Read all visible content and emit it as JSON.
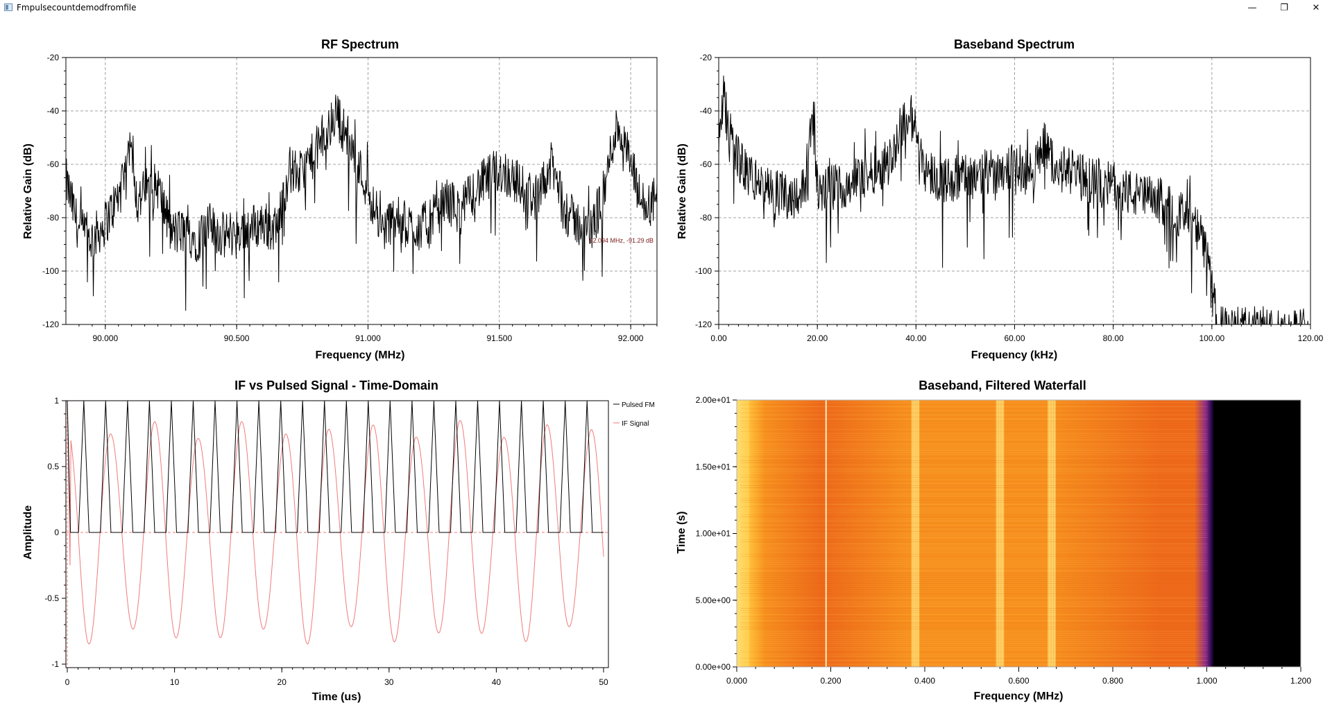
{
  "window": {
    "title": "Fmpulsecountdemodfromfile",
    "minimize": "—",
    "maximize": "❐",
    "close": "✕"
  },
  "icons": {
    "app": "app-window-icon"
  },
  "colors": {
    "trace_black": "#000000",
    "trace_pink": "#f07a7a",
    "marker_text": "#7a1a1a",
    "grid": "#a0a0a0"
  },
  "chart_data": [
    {
      "type": "line",
      "title": "RF Spectrum",
      "xlabel": "Frequency (MHz)",
      "ylabel": "Relative Gain (dB)",
      "xlim": [
        89.85,
        92.1
      ],
      "ylim": [
        -120,
        -20
      ],
      "xticks": [
        "90.000",
        "90.500",
        "91.000",
        "91.500",
        "92.000"
      ],
      "yticks": [
        "-20",
        "-40",
        "-60",
        "-80",
        "-100",
        "-120"
      ],
      "grid": true,
      "annotation": "92.094 MHz, -91.29 dB",
      "series": [
        {
          "x": [
            89.85,
            89.9,
            89.95,
            90.0,
            90.05,
            90.08,
            90.1,
            90.12,
            90.15,
            90.2,
            90.25,
            90.3,
            90.35,
            90.4,
            90.45,
            90.5,
            90.55,
            90.6,
            90.65,
            90.7,
            90.75,
            90.8,
            90.85,
            90.88,
            90.9,
            90.93,
            90.95,
            91.0,
            91.05,
            91.1,
            91.15,
            91.2,
            91.25,
            91.3,
            91.35,
            91.4,
            91.45,
            91.5,
            91.55,
            91.6,
            91.65,
            91.7,
            91.75,
            91.8,
            91.85,
            91.9,
            91.93,
            91.95,
            92.0,
            92.05,
            92.1
          ],
          "y": [
            -66,
            -85,
            -88,
            -82,
            -72,
            -65,
            -44,
            -75,
            -70,
            -68,
            -86,
            -85,
            -88,
            -83,
            -87,
            -85,
            -84,
            -82,
            -85,
            -62,
            -64,
            -55,
            -48,
            -40,
            -46,
            -51,
            -58,
            -69,
            -85,
            -80,
            -83,
            -84,
            -80,
            -73,
            -78,
            -70,
            -66,
            -62,
            -65,
            -70,
            -73,
            -60,
            -78,
            -82,
            -85,
            -70,
            -52,
            -45,
            -60,
            -78,
            -72
          ]
        }
      ]
    },
    {
      "type": "line",
      "title": "Baseband Spectrum",
      "xlabel": "Frequency (kHz)",
      "ylabel": "Relative Gain (dB)",
      "xlim": [
        0,
        120
      ],
      "ylim": [
        -120,
        -20
      ],
      "xticks": [
        "0.00",
        "20.00",
        "40.00",
        "60.00",
        "80.00",
        "100.00",
        "120.00"
      ],
      "yticks": [
        "-20",
        "-40",
        "-60",
        "-80",
        "-100",
        "-120"
      ],
      "grid": true,
      "series": [
        {
          "x": [
            0,
            1,
            2,
            5,
            10,
            15,
            18,
            19,
            20,
            25,
            30,
            35,
            37,
            39,
            42,
            45,
            50,
            55,
            60,
            63,
            65,
            66,
            68,
            70,
            75,
            80,
            85,
            90,
            93,
            96,
            98,
            99,
            100,
            101,
            101.5
          ],
          "y": [
            -55,
            -35,
            -48,
            -62,
            -70,
            -72,
            -68,
            -38,
            -70,
            -68,
            -64,
            -58,
            -45,
            -42,
            -62,
            -66,
            -65,
            -63,
            -60,
            -64,
            -58,
            -52,
            -60,
            -62,
            -66,
            -68,
            -72,
            -74,
            -78,
            -82,
            -88,
            -95,
            -108,
            -118,
            -122
          ]
        }
      ]
    },
    {
      "type": "line",
      "title": "IF vs Pulsed Signal - Time-Domain",
      "xlabel": "Time (us)",
      "ylabel": "Amplitude",
      "xlim": [
        0,
        50
      ],
      "ylim": [
        -1,
        1
      ],
      "xticks": [
        "0",
        "10",
        "20",
        "30",
        "40",
        "50"
      ],
      "yticks": [
        "1",
        "0.5",
        "0",
        "-0.5",
        "-1"
      ],
      "grid": false,
      "legend": "right",
      "series": [
        {
          "name": "Pulsed FM",
          "pulse_period": 2.04,
          "pulse_width": 0.78,
          "amplitude": 1.0
        },
        {
          "name": "IF Signal",
          "period": 4.07,
          "amplitude": 0.85
        }
      ]
    },
    {
      "type": "heatmap",
      "title": "Baseband, Filtered Waterfall",
      "xlabel": "Frequency (MHz)",
      "ylabel": "Time (s)",
      "xlim": [
        0,
        1.2
      ],
      "ylim": [
        0,
        20
      ],
      "xticks": [
        "0.000",
        "0.200",
        "0.400",
        "0.600",
        "0.800",
        "1.000",
        "1.200"
      ],
      "yticks": [
        "2.00e+01",
        "1.50e+01",
        "1.00e+01",
        "5.00e+00",
        "0.00e+00"
      ],
      "colormap": [
        "#fff5a0",
        "#ffc23a",
        "#f7901e",
        "#ee6a1a",
        "#8a2a8a",
        "#2a0a4a",
        "#000000"
      ],
      "bright_bands_mhz": [
        0.0,
        0.19,
        0.38,
        0.56,
        0.67
      ],
      "cutoff_mhz": 1.01
    }
  ]
}
